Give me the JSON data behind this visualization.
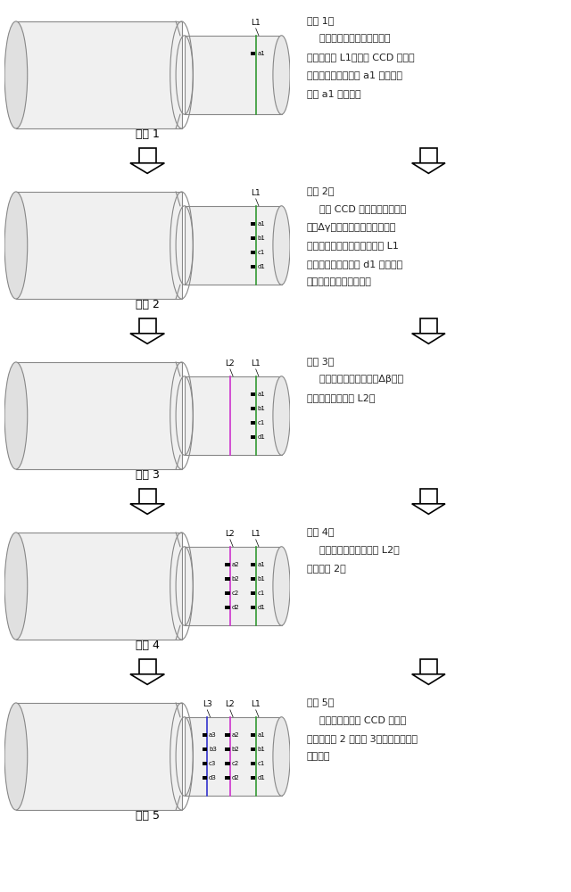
{
  "steps": [
    {
      "label": "步骤 1",
      "text_lines": [
        "步骤 1：",
        "    线结构光竖直投射到锻件表",
        "面形成光条 L1，线阵 CCD 相机视",
        "野与线结构光相交于 a1 点，捕捉",
        "光点 a1 的图像；"
      ],
      "light_lines": [
        "L1"
      ],
      "point_groups": [
        [
          "a1"
        ]
      ]
    },
    {
      "label": "步骤 2",
      "text_lines": [
        "步骤 2：",
        "    线阵 CCD 相机每次俯仰一个",
        "角度Δγ，与结构光相交于一点，",
        "并采集该点图像。相机与光条 L1",
        "的最后一个视野交点 d1 采集完成",
        "后，相机回到初始位置；"
      ],
      "light_lines": [
        "L1"
      ],
      "point_groups": [
        [
          "a1",
          "b1",
          "c1",
          "d1"
        ]
      ]
    },
    {
      "label": "步骤 3",
      "text_lines": [
        "步骤 3：",
        "    线结构光旋转一个角度Δβ，在",
        "锻件表面形成光条 L2；"
      ],
      "light_lines": [
        "L2",
        "L1"
      ],
      "point_groups": [
        [],
        [
          "a1",
          "b1",
          "c1",
          "d1"
        ]
      ]
    },
    {
      "label": "步骤 4",
      "text_lines": [
        "步骤 4：",
        "    相机开始采集结构光条 L2，",
        "重复步骤 2；"
      ],
      "light_lines": [
        "L2",
        "L1"
      ],
      "point_groups": [
        [
          "a2",
          "b2",
          "c2",
          "d2"
        ],
        [
          "a1",
          "b1",
          "c1",
          "d1"
        ]
      ]
    },
    {
      "label": "步骤 5",
      "text_lines": [
        "步骤 5：",
        "    线结构光和线阵 CCD 相机一",
        "直重复步骤 2 和步骤 3，直到扫描完锻",
        "件整体。"
      ],
      "light_lines": [
        "L3",
        "L2",
        "L1"
      ],
      "point_groups": [
        [
          "a3",
          "b3",
          "c3",
          "d3"
        ],
        [
          "a2",
          "b2",
          "c2",
          "d2"
        ],
        [
          "a1",
          "b1",
          "c1",
          "d1"
        ]
      ]
    }
  ],
  "light_colors": {
    "L1": "#339933",
    "L2": "#cc33cc",
    "L3": "#3333cc"
  },
  "light_x": {
    "L1": 0.82,
    "L2": 0.73,
    "L3": 0.64
  },
  "bg_color": "#ffffff",
  "border_color": "#666666",
  "text_color": "#222222",
  "arrow_color": "#333333"
}
